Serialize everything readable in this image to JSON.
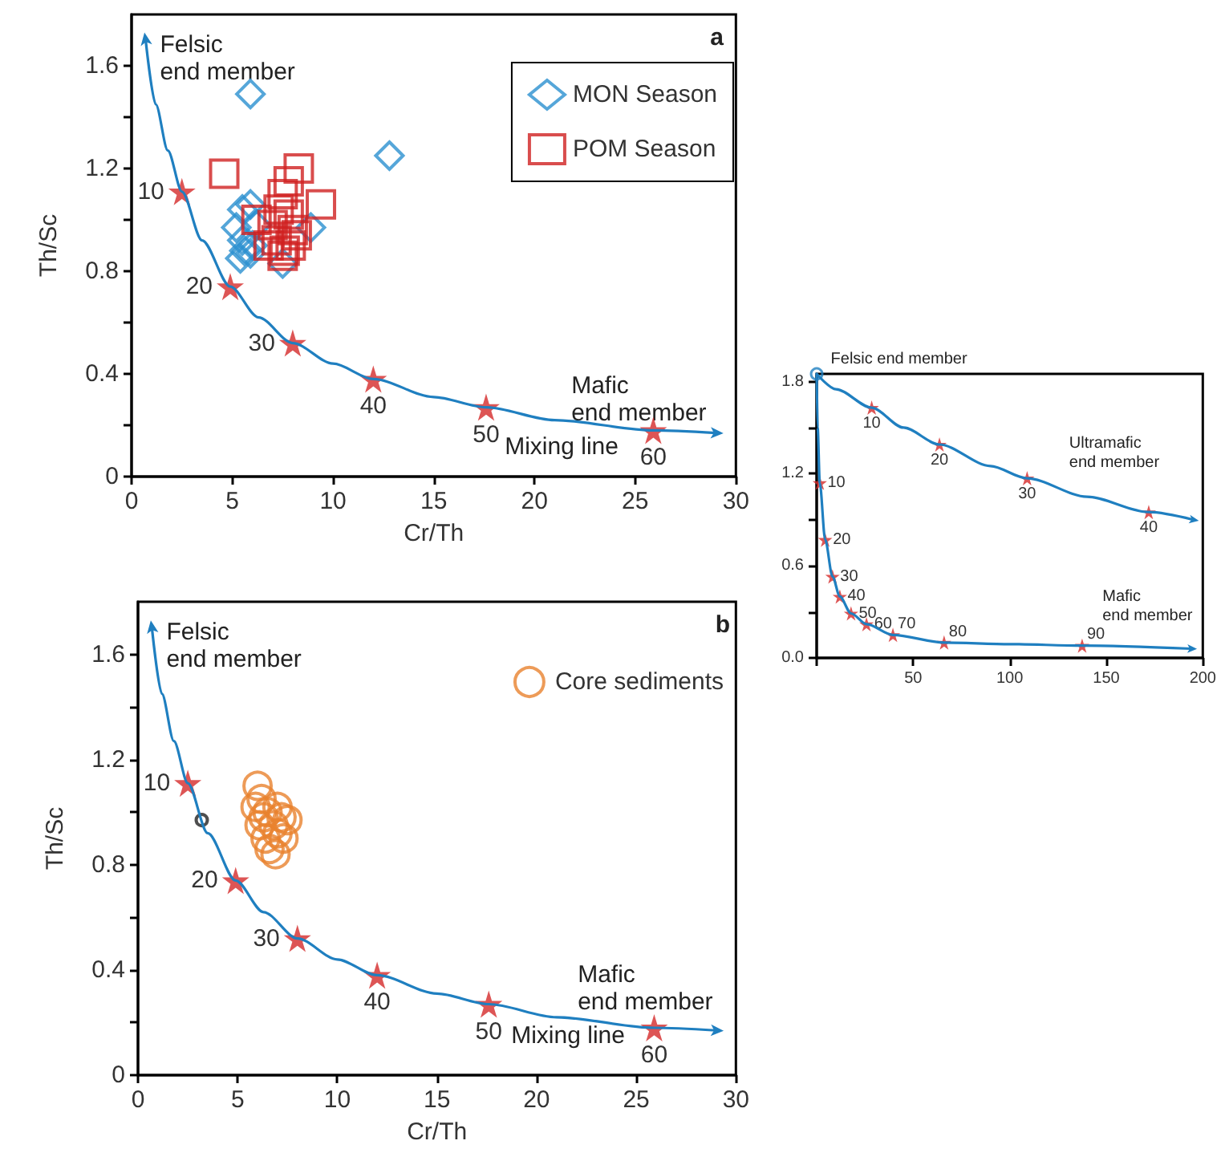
{
  "chart_data": [
    {
      "type": "scatter",
      "xlabel": "Cr/Th",
      "ylabel": "Th/Sc",
      "xlim": [
        0,
        30
      ],
      "xticks": [
        0,
        5,
        10,
        15,
        20,
        25,
        30
      ],
      "ylim": [
        0,
        1.8
      ],
      "yticks": [
        0,
        {
          "value": 0.2,
          "label": null
        },
        0.4,
        {
          "value": 0.6,
          "label": null
        },
        0.8,
        {
          "value": 1.0,
          "label": null
        },
        1.2,
        {
          "value": 1.4,
          "label": null
        },
        1.6
      ],
      "legend": "top right",
      "grid": false,
      "annotations": [
        "a",
        "Felsic\nend member",
        "Mafic\nend member",
        "Mixing line",
        {
          "text": "10",
          "x": 2.5,
          "y": 1.11
        },
        {
          "text": "20",
          "x": 4.9,
          "y": 0.74
        },
        {
          "text": "30",
          "x": 8,
          "y": 0.52
        },
        {
          "text": "40",
          "x": 12,
          "y": 0.38
        },
        {
          "text": "50",
          "x": 17.6,
          "y": 0.27
        },
        {
          "text": "60",
          "x": 25.9,
          "y": 0.18
        }
      ],
      "series": [
        {
          "type": "line",
          "color": "#1f7fc0",
          "x": [
            0.7,
            1.2,
            1.8,
            2.5,
            3.5,
            4.9,
            6.3,
            8,
            10,
            12,
            15,
            17.6,
            21,
            25.9,
            29
          ],
          "values": [
            1.7,
            1.45,
            1.27,
            1.11,
            0.92,
            0.74,
            0.62,
            0.52,
            0.44,
            0.38,
            0.31,
            0.27,
            0.22,
            0.18,
            0.17
          ]
        },
        {
          "marker": "star",
          "color": "#d42a2a",
          "x": [
            2.5,
            4.9,
            8,
            12,
            17.6,
            25.9
          ],
          "values": [
            1.11,
            0.74,
            0.52,
            0.38,
            0.27,
            0.18
          ]
        },
        {
          "name": "MON Season",
          "marker": "diamond",
          "color": "#2a90d0",
          "x": [
            5.9,
            12.8,
            5.5,
            5.9,
            5.2,
            5.5,
            5.6,
            5.4,
            5.9,
            7.5,
            8.9,
            6.2,
            6.0
          ],
          "values": [
            1.49,
            1.25,
            1.04,
            1.06,
            0.97,
            0.92,
            0.88,
            0.85,
            0.87,
            0.83,
            0.97,
            0.98,
            0.9
          ]
        },
        {
          "name": "POM Season",
          "marker": "square",
          "color": "#d02020",
          "x": [
            4.6,
            8.3,
            7.8,
            7.5,
            9.4,
            6.2,
            7.0,
            7.3,
            7.8,
            8.0,
            7.2,
            7.6,
            8.2,
            6.8,
            7.5,
            7.9
          ],
          "values": [
            1.18,
            1.2,
            1.15,
            1.1,
            1.06,
            1.0,
            0.98,
            1.04,
            1.02,
            0.96,
            0.92,
            0.88,
            0.94,
            0.9,
            0.86,
            0.9
          ]
        }
      ]
    },
    {
      "type": "line",
      "xlim": [
        0,
        200
      ],
      "xticks": [
        {
          "value": 0,
          "label": null
        },
        50,
        100,
        150,
        200
      ],
      "ylim": [
        0,
        1.85
      ],
      "yticks": [
        {
          "value": 0,
          "label": "0.0"
        },
        {
          "value": 0.3,
          "label": null
        },
        0.6,
        {
          "value": 0.9,
          "label": null
        },
        1.2,
        {
          "value": 1.5,
          "label": null
        },
        1.8
      ],
      "grid": false,
      "annotations": [
        "Felsic end member",
        "Ultramafic\nend member",
        "Mafic\nend member",
        {
          "text": "10",
          "x": 28.5,
          "y": 1.63
        },
        {
          "text": "20",
          "x": 63.6,
          "y": 1.39
        },
        {
          "text": "30",
          "x": 109,
          "y": 1.17
        },
        {
          "text": "40",
          "x": 172,
          "y": 0.95
        },
        {
          "text": "10",
          "x": 1.6,
          "y": 1.14
        },
        {
          "text": "20",
          "x": 4.4,
          "y": 0.77
        },
        {
          "text": "30",
          "x": 8.2,
          "y": 0.53
        },
        {
          "text": "40",
          "x": 12,
          "y": 0.4
        },
        {
          "text": "50",
          "x": 17.8,
          "y": 0.29
        },
        {
          "text": "60",
          "x": 25.8,
          "y": 0.22
        },
        {
          "text": "70",
          "x": 39.5,
          "y": 0.15
        },
        {
          "text": "80",
          "x": 66,
          "y": 0.1
        },
        {
          "text": "90",
          "x": 137.5,
          "y": 0.08
        }
      ],
      "series": [
        {
          "color": "#1f7fc0",
          "x": [
            0,
            10,
            28.5,
            45,
            63.6,
            90,
            109,
            140,
            172,
            195
          ],
          "values": [
            1.85,
            1.75,
            1.63,
            1.5,
            1.39,
            1.25,
            1.17,
            1.05,
            0.95,
            0.9
          ]
        },
        {
          "color": "#1f7fc0",
          "x": [
            0,
            0.5,
            1.6,
            4.4,
            8.2,
            12,
            17.8,
            25.8,
            39.5,
            66,
            100,
            137.5,
            194
          ],
          "values": [
            1.85,
            1.5,
            1.14,
            0.77,
            0.53,
            0.4,
            0.29,
            0.22,
            0.15,
            0.1,
            0.09,
            0.08,
            0.06
          ]
        },
        {
          "type": "scatter",
          "marker": "star",
          "color": "#d42a2a",
          "x": [
            28.5,
            63.6,
            109,
            172
          ],
          "values": [
            1.63,
            1.39,
            1.17,
            0.95
          ]
        },
        {
          "type": "scatter",
          "marker": "star",
          "color": "#d42a2a",
          "x": [
            1.6,
            4.4,
            8.2,
            12,
            17.8,
            25.8,
            39.5,
            66,
            137.5
          ],
          "values": [
            1.14,
            0.77,
            0.53,
            0.4,
            0.29,
            0.22,
            0.15,
            0.1,
            0.08
          ]
        },
        {
          "type": "scatter",
          "marker": "circle",
          "color": "#1f7fc0",
          "x": [
            0
          ],
          "values": [
            1.85
          ]
        }
      ]
    },
    {
      "type": "scatter",
      "xlabel": "Cr/Th",
      "ylabel": "Th/Sc",
      "xlim": [
        0,
        30
      ],
      "xticks": [
        0,
        5,
        10,
        15,
        20,
        25,
        30
      ],
      "ylim": [
        0,
        1.8
      ],
      "yticks": [
        0,
        {
          "value": 0.2,
          "label": null
        },
        0.4,
        {
          "value": 0.6,
          "label": null
        },
        0.8,
        {
          "value": 1.0,
          "label": null
        },
        1.2,
        {
          "value": 1.4,
          "label": null
        },
        1.6
      ],
      "legend": "top right",
      "grid": false,
      "annotations": [
        "b",
        "Felsic\nend member",
        "Mafic\nend member",
        "Mixing line",
        {
          "text": "10",
          "x": 2.5,
          "y": 1.11
        },
        {
          "text": "20",
          "x": 4.9,
          "y": 0.74
        },
        {
          "text": "30",
          "x": 8,
          "y": 0.52
        },
        {
          "text": "40",
          "x": 12,
          "y": 0.38
        },
        {
          "text": "50",
          "x": 17.6,
          "y": 0.27
        },
        {
          "text": "60",
          "x": 25.9,
          "y": 0.18
        }
      ],
      "series": [
        {
          "type": "line",
          "color": "#1f7fc0",
          "x": [
            0.7,
            1.2,
            1.8,
            2.5,
            3.5,
            4.9,
            6.3,
            8,
            10,
            12,
            15,
            17.6,
            21,
            25.9,
            29
          ],
          "values": [
            1.7,
            1.45,
            1.27,
            1.11,
            0.92,
            0.74,
            0.62,
            0.52,
            0.44,
            0.38,
            0.31,
            0.27,
            0.22,
            0.18,
            0.17
          ]
        },
        {
          "marker": "star",
          "color": "#d42a2a",
          "x": [
            2.5,
            4.9,
            8,
            12,
            17.6,
            25.9
          ],
          "values": [
            1.11,
            0.74,
            0.52,
            0.38,
            0.27,
            0.18
          ]
        },
        {
          "marker": "circle",
          "color": "#222222",
          "x": [
            3.2
          ],
          "values": [
            0.97
          ]
        },
        {
          "name": "Core sediments",
          "marker": "circle",
          "color": "#e8822e",
          "x": [
            6.0,
            6.2,
            5.9,
            6.5,
            7.2,
            6.8,
            6.1,
            6.4,
            7.0,
            6.6,
            7.3,
            6.9,
            7.5,
            6.3,
            7.0
          ],
          "values": [
            1.1,
            1.05,
            1.02,
            1.0,
            0.98,
            0.95,
            0.95,
            0.9,
            0.92,
            0.86,
            0.9,
            0.84,
            0.97,
            0.98,
            1.02
          ]
        }
      ]
    }
  ]
}
